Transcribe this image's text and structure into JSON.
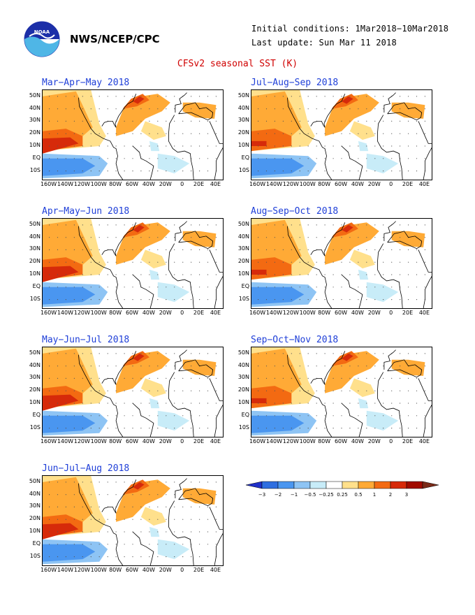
{
  "header": {
    "agency": "NWS/NCEP/CPC",
    "initial_conditions": "Initial conditions: 1Mar2018−10Mar2018",
    "last_update": "Last update: Sun Mar 11 2018",
    "title": "CFSv2 seasonal SST (K)"
  },
  "panels": [
    {
      "title": "Mar−Apr−May 2018"
    },
    {
      "title": "Apr−May−Jun 2018"
    },
    {
      "title": "May−Jun−Jul 2018"
    },
    {
      "title": "Jun−Jul−Aug 2018"
    },
    {
      "title": "Jul−Aug−Sep 2018"
    },
    {
      "title": "Aug−Sep−Oct 2018"
    },
    {
      "title": "Sep−Oct−Nov 2018"
    }
  ],
  "axes": {
    "lat_ticks": [
      "50N",
      "40N",
      "30N",
      "20N",
      "10N",
      "EQ",
      "10S"
    ],
    "lon_ticks": [
      "160W",
      "140W",
      "120W",
      "100W",
      "80W",
      "60W",
      "40W",
      "20W",
      "0",
      "20E",
      "40E"
    ]
  },
  "legend": {
    "levels": [
      "−3",
      "−2",
      "−1",
      "−0.5",
      "−0.25",
      "0.25",
      "0.5",
      "1",
      "2",
      "3"
    ],
    "colors": [
      "#2030c8",
      "#2e6ee0",
      "#4a96f0",
      "#8ec4f4",
      "#c8ecf8",
      "#ffffff",
      "#ffe08c",
      "#ffaa36",
      "#f36a12",
      "#d62a0a",
      "#a00c00",
      "#7a2a18"
    ]
  }
}
